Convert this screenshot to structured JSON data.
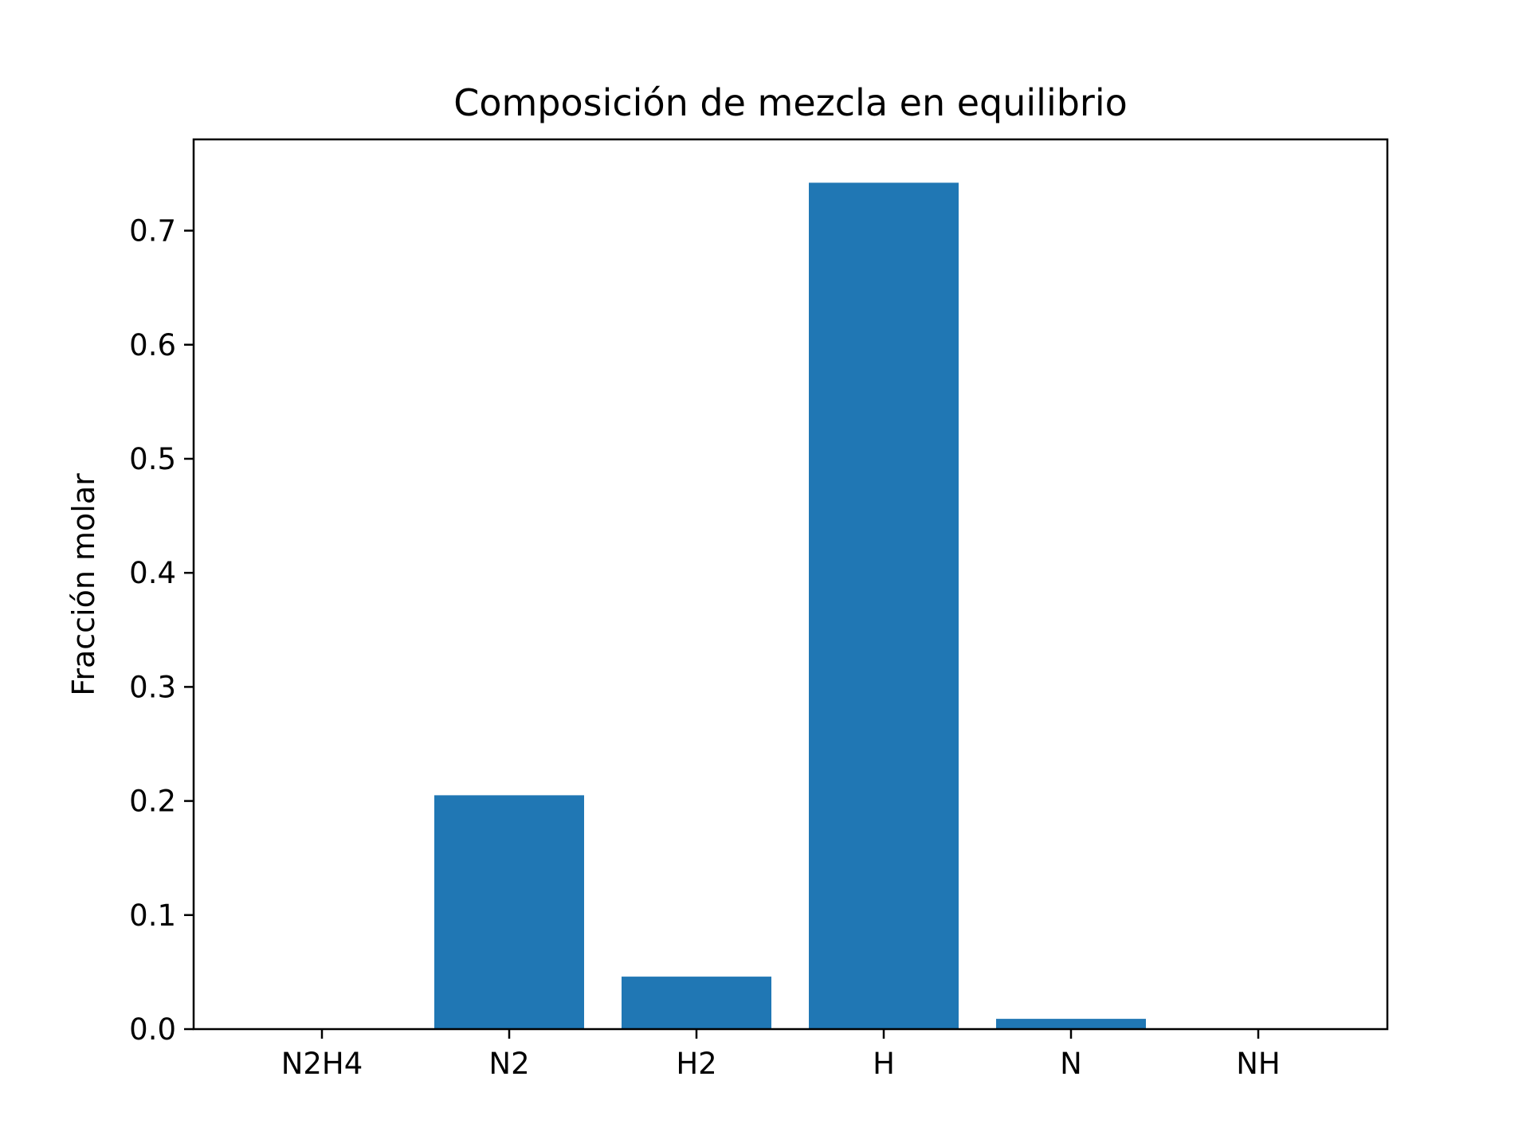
{
  "chart_data": {
    "type": "bar",
    "title": "Composición de mezcla en equilibrio",
    "xlabel": "",
    "ylabel": "Fracción molar",
    "categories": [
      "N2H4",
      "N2",
      "H2",
      "H",
      "N",
      "NH"
    ],
    "values": [
      0.0,
      0.205,
      0.046,
      0.742,
      0.009,
      0.0
    ],
    "ylim": [
      0,
      0.78
    ],
    "yticks": [
      0.0,
      0.1,
      0.2,
      0.3,
      0.4,
      0.5,
      0.6,
      0.7
    ],
    "ytick_labels": [
      "0.0",
      "0.1",
      "0.2",
      "0.3",
      "0.4",
      "0.5",
      "0.6",
      "0.7"
    ],
    "grid": false,
    "legend": "none",
    "bar_color": "#2077b4"
  }
}
